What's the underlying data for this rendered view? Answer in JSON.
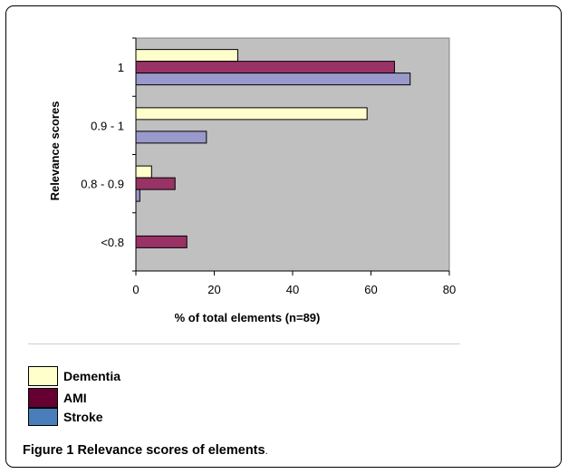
{
  "chart_data": {
    "type": "bar",
    "orientation": "horizontal",
    "categories": [
      "1",
      "0.9 - 1",
      "0.8 - 0.9",
      "<0.8"
    ],
    "series": [
      {
        "name": "Dementia",
        "values": [
          26,
          59,
          4,
          0
        ],
        "color": "#ffffcc"
      },
      {
        "name": "AMI",
        "values": [
          66,
          0,
          10,
          13
        ],
        "color": "#993366"
      },
      {
        "name": "Stroke",
        "values": [
          70,
          18,
          1,
          0
        ],
        "color": "#9999cc"
      }
    ],
    "xlabel": "% of total elements (n=89)",
    "ylabel": "Relevance scores",
    "xlim": [
      0,
      80
    ],
    "xticks": [
      "0",
      "20",
      "40",
      "60",
      "80"
    ],
    "plot_background": "#c0c0c0",
    "grid": false
  },
  "legend": {
    "items": [
      {
        "label": "Dementia",
        "color": "#ffffcc"
      },
      {
        "label": "AMI",
        "color": "#660033"
      },
      {
        "label": "Stroke",
        "color": "#4a7ebb"
      }
    ]
  },
  "caption": {
    "label": "Figure 1",
    "text": "Relevance scores of elements",
    "period": "."
  }
}
